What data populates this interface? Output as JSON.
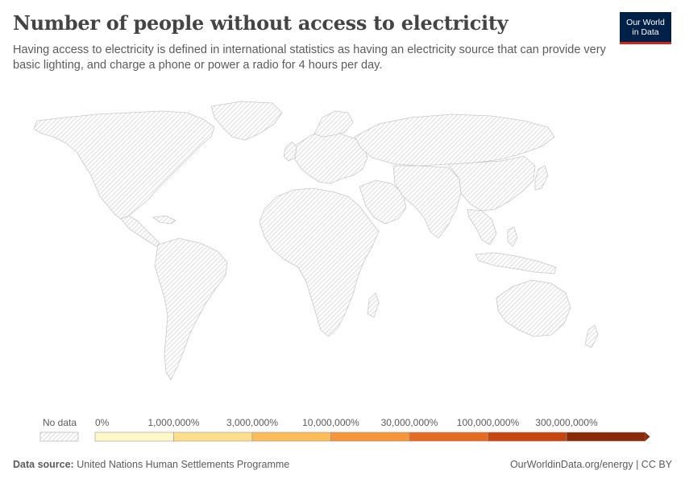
{
  "header": {
    "title": "Number of people without access to electricity",
    "subtitle": "Having access to electricity is defined in international statistics as having an electricity source that can provide very basic lighting, and charge a phone or power a radio for 4 hours per day."
  },
  "logo": {
    "line1": "Our World",
    "line2": "in Data",
    "background": "#002147",
    "accent": "#ce261e"
  },
  "legend": {
    "no_data_label": "No data",
    "bins": [
      {
        "label": "0%",
        "color": "#fef8c8"
      },
      {
        "label": "1,000,000%",
        "color": "#fdde8d"
      },
      {
        "label": "3,000,000%",
        "color": "#fbbd5a"
      },
      {
        "label": "10,000,000%",
        "color": "#f7953a"
      },
      {
        "label": "30,000,000%",
        "color": "#e56b23"
      },
      {
        "label": "100,000,000%",
        "color": "#c7450f"
      },
      {
        "label": "300,000,000%",
        "color": "#8b2a06"
      }
    ]
  },
  "footer": {
    "source_label": "Data source:",
    "source_value": "United Nations Human Settlements Programme",
    "link_text": "OurWorldinData.org/energy",
    "separator": "|",
    "license": "CC BY"
  }
}
